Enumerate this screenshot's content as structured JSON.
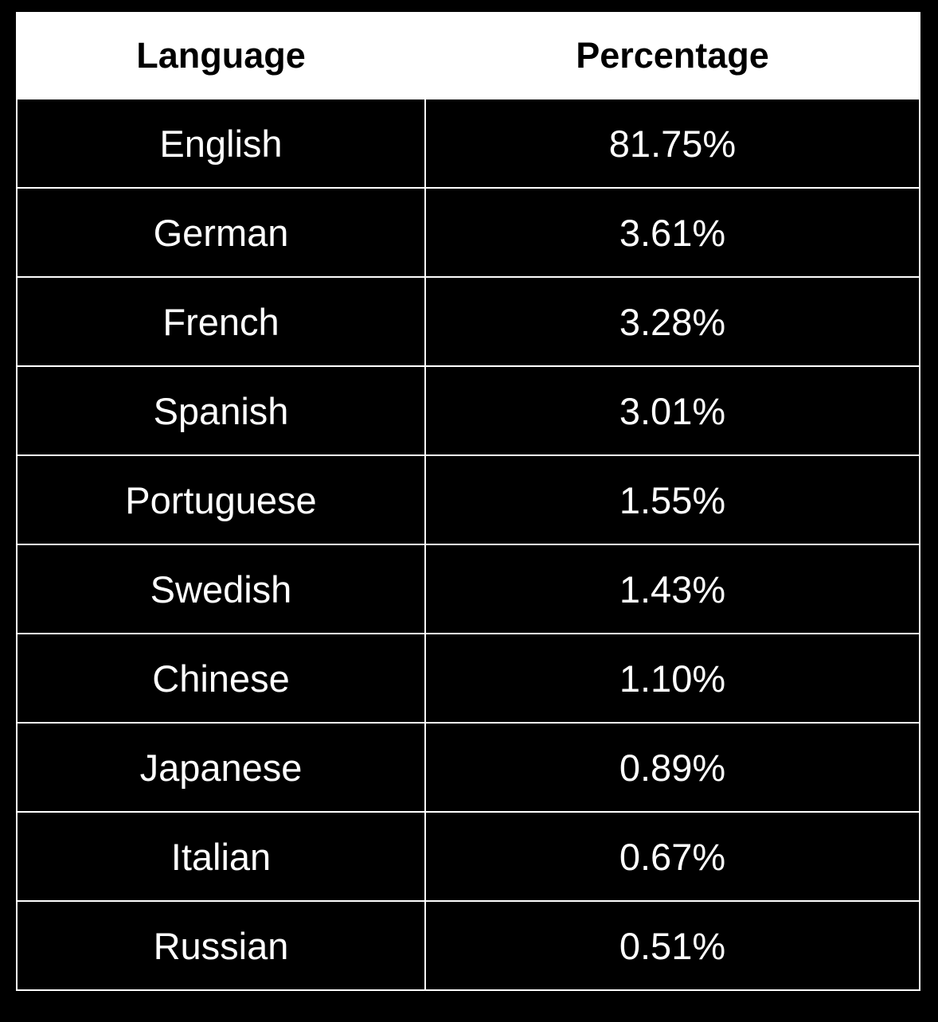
{
  "chart_data": {
    "type": "table",
    "columns": [
      "Language",
      "Percentage"
    ],
    "rows": [
      {
        "language": "English",
        "percentage": "81.75%"
      },
      {
        "language": "German",
        "percentage": "3.61%"
      },
      {
        "language": "French",
        "percentage": "3.28%"
      },
      {
        "language": "Spanish",
        "percentage": "3.01%"
      },
      {
        "language": "Portuguese",
        "percentage": "1.55%"
      },
      {
        "language": "Swedish",
        "percentage": "1.43%"
      },
      {
        "language": "Chinese",
        "percentage": "1.10%"
      },
      {
        "language": "Japanese",
        "percentage": "0.89%"
      },
      {
        "language": "Italian",
        "percentage": "0.67%"
      },
      {
        "language": "Russian",
        "percentage": "0.51%"
      }
    ]
  },
  "colors": {
    "background": "#000000",
    "header_background": "#ffffff",
    "header_text": "#000000",
    "cell_text": "#ffffff",
    "border": "#ffffff"
  }
}
